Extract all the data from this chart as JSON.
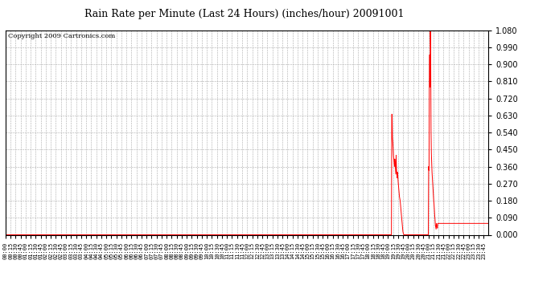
{
  "title": "Rain Rate per Minute (Last 24 Hours) (inches/hour) 20091001",
  "copyright": "Copyright 2009 Cartronics.com",
  "background_color": "#ffffff",
  "plot_bg_color": "#ffffff",
  "grid_color": "#aaaaaa",
  "line_color": "#ff0000",
  "line_width": 0.7,
  "ylim": [
    0.0,
    1.08
  ],
  "yticks": [
    0.0,
    0.09,
    0.18,
    0.27,
    0.36,
    0.45,
    0.54,
    0.63,
    0.72,
    0.81,
    0.9,
    0.99,
    1.08
  ],
  "total_minutes": 1440,
  "rain_data": [
    [
      0,
      1149,
      0.0
    ],
    [
      1150,
      1150,
      0.0
    ],
    [
      1151,
      1151,
      0.636
    ],
    [
      1152,
      1152,
      0.636
    ],
    [
      1153,
      1153,
      0.51
    ],
    [
      1154,
      1154,
      0.49
    ],
    [
      1155,
      1155,
      0.46
    ],
    [
      1156,
      1156,
      0.42
    ],
    [
      1157,
      1157,
      0.4
    ],
    [
      1158,
      1158,
      0.38
    ],
    [
      1159,
      1159,
      0.36
    ],
    [
      1160,
      1160,
      0.4
    ],
    [
      1161,
      1161,
      0.38
    ],
    [
      1162,
      1162,
      0.35
    ],
    [
      1163,
      1163,
      0.32
    ],
    [
      1164,
      1164,
      0.42
    ],
    [
      1165,
      1165,
      0.35
    ],
    [
      1166,
      1166,
      0.32
    ],
    [
      1167,
      1167,
      0.3
    ],
    [
      1168,
      1168,
      0.33
    ],
    [
      1169,
      1169,
      0.31
    ],
    [
      1170,
      1170,
      0.28
    ],
    [
      1171,
      1171,
      0.26
    ],
    [
      1172,
      1172,
      0.24
    ],
    [
      1173,
      1173,
      0.22
    ],
    [
      1174,
      1174,
      0.2
    ],
    [
      1175,
      1175,
      0.19
    ],
    [
      1176,
      1176,
      0.18
    ],
    [
      1177,
      1177,
      0.16
    ],
    [
      1178,
      1178,
      0.14
    ],
    [
      1179,
      1179,
      0.12
    ],
    [
      1180,
      1180,
      0.1
    ],
    [
      1181,
      1181,
      0.08
    ],
    [
      1182,
      1182,
      0.06
    ],
    [
      1183,
      1183,
      0.04
    ],
    [
      1184,
      1184,
      0.02
    ],
    [
      1185,
      1185,
      0.01
    ],
    [
      1186,
      1186,
      0.005
    ],
    [
      1187,
      1259,
      0.0
    ],
    [
      1260,
      1260,
      0.0
    ],
    [
      1261,
      1261,
      0.36
    ],
    [
      1262,
      1262,
      0.34
    ],
    [
      1263,
      1263,
      0.82
    ],
    [
      1264,
      1264,
      0.95
    ],
    [
      1265,
      1265,
      0.78
    ],
    [
      1266,
      1266,
      1.08
    ],
    [
      1267,
      1267,
      0.97
    ],
    [
      1268,
      1268,
      0.55
    ],
    [
      1269,
      1269,
      0.43
    ],
    [
      1270,
      1270,
      0.38
    ],
    [
      1271,
      1271,
      0.33
    ],
    [
      1272,
      1272,
      0.3
    ],
    [
      1273,
      1273,
      0.27
    ],
    [
      1274,
      1274,
      0.24
    ],
    [
      1275,
      1275,
      0.21
    ],
    [
      1276,
      1276,
      0.18
    ],
    [
      1277,
      1277,
      0.16
    ],
    [
      1278,
      1278,
      0.13
    ],
    [
      1279,
      1279,
      0.1
    ],
    [
      1280,
      1280,
      0.08
    ],
    [
      1281,
      1281,
      0.05
    ],
    [
      1282,
      1282,
      0.04
    ],
    [
      1283,
      1283,
      0.03
    ],
    [
      1284,
      1284,
      0.06
    ],
    [
      1285,
      1285,
      0.05
    ],
    [
      1286,
      1286,
      0.04
    ],
    [
      1287,
      1287,
      0.035
    ],
    [
      1288,
      1439,
      0.06
    ]
  ]
}
